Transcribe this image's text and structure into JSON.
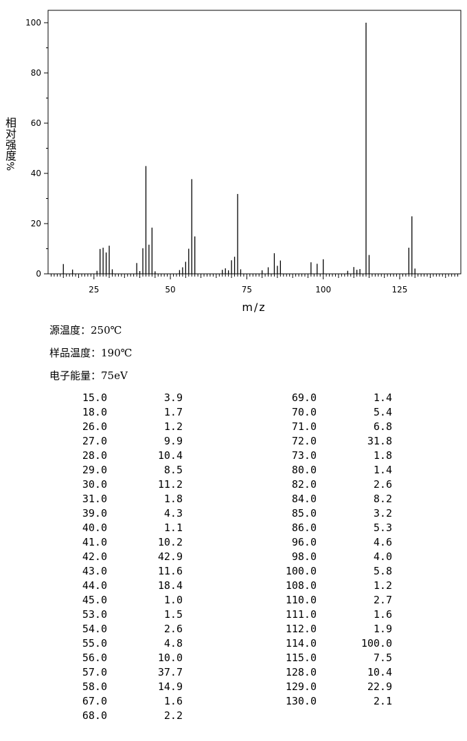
{
  "chart_data": {
    "type": "bar",
    "title": "",
    "xlabel": "m/z",
    "ylabel": "相对强度",
    "ylabel_unit": "%",
    "xlim": [
      10,
      145
    ],
    "ylim": [
      0,
      100
    ],
    "xticks": [
      25,
      50,
      75,
      100,
      125
    ],
    "yticks": [
      0,
      20,
      40,
      60,
      80,
      100
    ],
    "grid": false,
    "peaks": [
      {
        "mz": 15.0,
        "intensity": 3.9
      },
      {
        "mz": 18.0,
        "intensity": 1.7
      },
      {
        "mz": 26.0,
        "intensity": 1.2
      },
      {
        "mz": 27.0,
        "intensity": 9.9
      },
      {
        "mz": 28.0,
        "intensity": 10.4
      },
      {
        "mz": 29.0,
        "intensity": 8.5
      },
      {
        "mz": 30.0,
        "intensity": 11.2
      },
      {
        "mz": 31.0,
        "intensity": 1.8
      },
      {
        "mz": 39.0,
        "intensity": 4.3
      },
      {
        "mz": 40.0,
        "intensity": 1.1
      },
      {
        "mz": 41.0,
        "intensity": 10.2
      },
      {
        "mz": 42.0,
        "intensity": 42.9
      },
      {
        "mz": 43.0,
        "intensity": 11.6
      },
      {
        "mz": 44.0,
        "intensity": 18.4
      },
      {
        "mz": 45.0,
        "intensity": 1.0
      },
      {
        "mz": 53.0,
        "intensity": 1.5
      },
      {
        "mz": 54.0,
        "intensity": 2.6
      },
      {
        "mz": 55.0,
        "intensity": 4.8
      },
      {
        "mz": 56.0,
        "intensity": 10.0
      },
      {
        "mz": 57.0,
        "intensity": 37.7
      },
      {
        "mz": 58.0,
        "intensity": 14.9
      },
      {
        "mz": 67.0,
        "intensity": 1.6
      },
      {
        "mz": 68.0,
        "intensity": 2.2
      },
      {
        "mz": 69.0,
        "intensity": 1.4
      },
      {
        "mz": 70.0,
        "intensity": 5.4
      },
      {
        "mz": 71.0,
        "intensity": 6.8
      },
      {
        "mz": 72.0,
        "intensity": 31.8
      },
      {
        "mz": 73.0,
        "intensity": 1.8
      },
      {
        "mz": 80.0,
        "intensity": 1.4
      },
      {
        "mz": 82.0,
        "intensity": 2.6
      },
      {
        "mz": 84.0,
        "intensity": 8.2
      },
      {
        "mz": 85.0,
        "intensity": 3.2
      },
      {
        "mz": 86.0,
        "intensity": 5.3
      },
      {
        "mz": 96.0,
        "intensity": 4.6
      },
      {
        "mz": 98.0,
        "intensity": 4.0
      },
      {
        "mz": 100.0,
        "intensity": 5.8
      },
      {
        "mz": 108.0,
        "intensity": 1.2
      },
      {
        "mz": 110.0,
        "intensity": 2.7
      },
      {
        "mz": 111.0,
        "intensity": 1.6
      },
      {
        "mz": 112.0,
        "intensity": 1.9
      },
      {
        "mz": 114.0,
        "intensity": 100.0
      },
      {
        "mz": 115.0,
        "intensity": 7.5
      },
      {
        "mz": 128.0,
        "intensity": 10.4
      },
      {
        "mz": 129.0,
        "intensity": 22.9
      },
      {
        "mz": 130.0,
        "intensity": 2.1
      }
    ]
  },
  "conditions": {
    "source_temp_label": "源温度：",
    "source_temp_value": "250℃",
    "sample_temp_label": "样品温度：",
    "sample_temp_value": "190℃",
    "electron_energy_label": "电子能量：",
    "electron_energy_value": "75eV"
  },
  "peak_table": {
    "left": [
      [
        "15.0",
        "3.9"
      ],
      [
        "18.0",
        "1.7"
      ],
      [
        "26.0",
        "1.2"
      ],
      [
        "27.0",
        "9.9"
      ],
      [
        "28.0",
        "10.4"
      ],
      [
        "29.0",
        "8.5"
      ],
      [
        "30.0",
        "11.2"
      ],
      [
        "31.0",
        "1.8"
      ],
      [
        "39.0",
        "4.3"
      ],
      [
        "40.0",
        "1.1"
      ],
      [
        "41.0",
        "10.2"
      ],
      [
        "42.0",
        "42.9"
      ],
      [
        "43.0",
        "11.6"
      ],
      [
        "44.0",
        "18.4"
      ],
      [
        "45.0",
        "1.0"
      ],
      [
        "53.0",
        "1.5"
      ],
      [
        "54.0",
        "2.6"
      ],
      [
        "55.0",
        "4.8"
      ],
      [
        "56.0",
        "10.0"
      ],
      [
        "57.0",
        "37.7"
      ],
      [
        "58.0",
        "14.9"
      ],
      [
        "67.0",
        "1.6"
      ],
      [
        "68.0",
        "2.2"
      ]
    ],
    "right": [
      [
        "69.0",
        "1.4"
      ],
      [
        "70.0",
        "5.4"
      ],
      [
        "71.0",
        "6.8"
      ],
      [
        "72.0",
        "31.8"
      ],
      [
        "73.0",
        "1.8"
      ],
      [
        "80.0",
        "1.4"
      ],
      [
        "82.0",
        "2.6"
      ],
      [
        "84.0",
        "8.2"
      ],
      [
        "85.0",
        "3.2"
      ],
      [
        "86.0",
        "5.3"
      ],
      [
        "96.0",
        "4.6"
      ],
      [
        "98.0",
        "4.0"
      ],
      [
        "100.0",
        "5.8"
      ],
      [
        "108.0",
        "1.2"
      ],
      [
        "110.0",
        "2.7"
      ],
      [
        "111.0",
        "1.6"
      ],
      [
        "112.0",
        "1.9"
      ],
      [
        "114.0",
        "100.0"
      ],
      [
        "115.0",
        "7.5"
      ],
      [
        "128.0",
        "10.4"
      ],
      [
        "129.0",
        "22.9"
      ],
      [
        "130.0",
        "2.1"
      ]
    ]
  }
}
